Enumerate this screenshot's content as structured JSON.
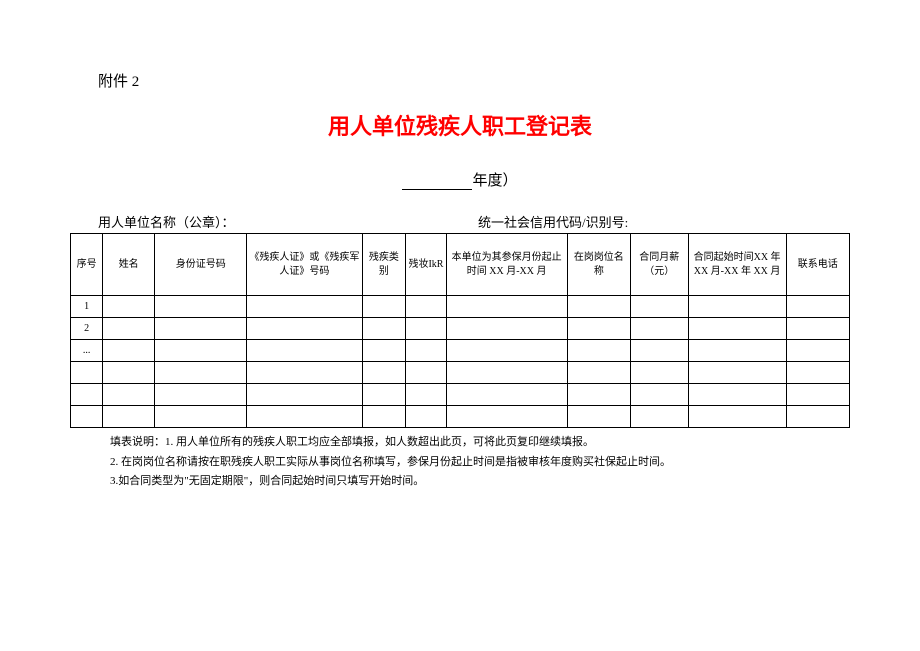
{
  "attachment": "附件 2",
  "title": "用人单位残疾人职工登记表",
  "year_suffix": "年度）",
  "org_label": "用人单位名称（公章）：",
  "credit_label": "统一社会信用代码/识别号:",
  "columns": {
    "seq": "序号",
    "name": "姓名",
    "id_number": "身份证号码",
    "cert_number": "《残疾人证》或《残疾军人证》号码",
    "dis_type": "残疾类别",
    "dis_level": "残妆IkR",
    "insurance_period": "本单位为其参保月份起止时间 XX 月-XX 月",
    "position": "在岗岗位名称",
    "salary": "合同月薪（元）",
    "contract_period": "合同起始时间XX 年 XX 月-XX 年 XX 月",
    "phone": "联系电话"
  },
  "rows": [
    {
      "seq": "1"
    },
    {
      "seq": "2"
    },
    {
      "seq": "..."
    },
    {
      "seq": ""
    },
    {
      "seq": ""
    },
    {
      "seq": ""
    }
  ],
  "notes": {
    "line1": "填表说明：1. 用人单位所有的残疾人职工均应全部填报，如人数超出此页，可将此页复印继续填报。",
    "line2": "2. 在岗岗位名称请按在职残疾人职工实际从事岗位名称填写，参保月份起止时间是指被审核年度购买社保起止时间。",
    "line3": "3.如合同类型为\"无固定期限\"，则合同起始时间只填写开始时间。"
  },
  "styling": {
    "title_color": "#ff0000",
    "text_color": "#000000",
    "border_color": "#000000",
    "background": "#ffffff",
    "title_fontsize": 22,
    "body_fontsize": 13,
    "table_header_fontsize": 10,
    "notes_fontsize": 11
  }
}
